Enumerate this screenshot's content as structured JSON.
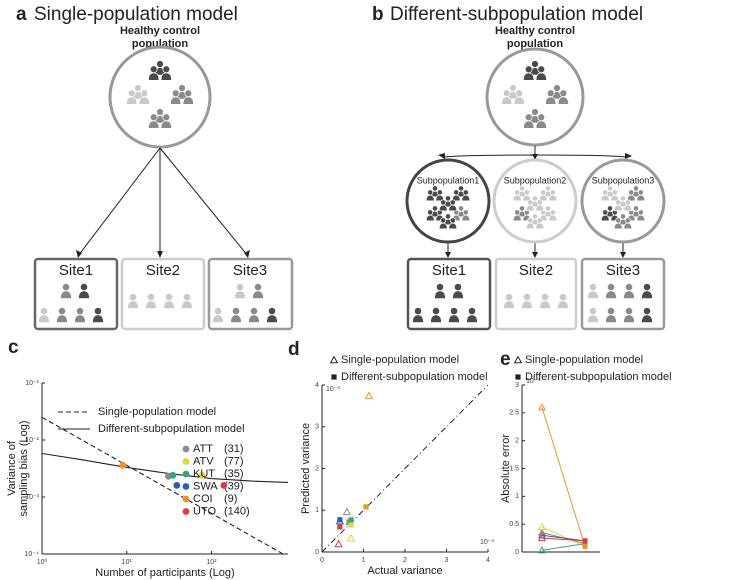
{
  "diagrams": {
    "a": {
      "label": "a",
      "title": "Single-population model",
      "population": [
        "Healthy control",
        "population"
      ],
      "sites": [
        "Site1",
        "Site2",
        "Site3"
      ]
    },
    "b": {
      "label": "b",
      "title": "Different-subpopulation model",
      "population": [
        "Healthy control",
        "population"
      ],
      "subpopulations": [
        "Subpopulation1",
        "Subpopulation2",
        "Subpopulation3"
      ],
      "sites": [
        "Site1",
        "Site2",
        "Site3"
      ]
    }
  },
  "chart_data": [
    {
      "type": "scatter",
      "label": "c",
      "xlabel": "Number of participants (Log)",
      "ylabel": [
        "Variance of",
        "sampling bias (Log)"
      ],
      "xscale": "log",
      "yscale": "log",
      "xlim": [
        1,
        800
      ],
      "ylim": [
        0.0001,
        0.1
      ],
      "xticks": [
        {
          "value": 1,
          "label": "10⁰"
        },
        {
          "value": 10,
          "label": "10¹"
        },
        {
          "value": 100,
          "label": "10²"
        }
      ],
      "yticks": [
        {
          "value": 0.0001,
          "label": "10⁻⁴"
        },
        {
          "value": 0.001,
          "label": "10⁻³"
        },
        {
          "value": 0.01,
          "label": "10⁻²"
        },
        {
          "value": 0.1,
          "label": "10⁻¹"
        }
      ],
      "lines": [
        {
          "name": "Single-population model",
          "style": "dashed",
          "color": "#222222",
          "x": [
            1,
            700
          ],
          "values": [
            0.025,
            0.0001
          ]
        },
        {
          "name": "Different-subpopulation model",
          "style": "solid",
          "color": "#222222",
          "x": [
            1,
            3,
            10,
            30,
            100,
            300,
            800
          ],
          "values": [
            0.0058,
            0.0045,
            0.0033,
            0.0026,
            0.0021,
            0.0019,
            0.0018
          ]
        }
      ],
      "series": [
        {
          "name": "ATT",
          "n_label": "(31)",
          "color": "#8c8c8c",
          "x": [
            31
          ],
          "values": [
            0.0023
          ]
        },
        {
          "name": "ATV",
          "n_label": "(77)",
          "color": "#e8d33a",
          "x": [
            77
          ],
          "values": [
            0.0024
          ]
        },
        {
          "name": "KUT",
          "n_label": "(35)",
          "color": "#3aa57a",
          "x": [
            35
          ],
          "values": [
            0.0024
          ]
        },
        {
          "name": "SWA",
          "n_label": "(39)",
          "color": "#2c5faa",
          "x": [
            39
          ],
          "values": [
            0.0016
          ]
        },
        {
          "name": "COI",
          "n_label": "(9)",
          "color": "#f0922a",
          "x": [
            9
          ],
          "values": [
            0.0036
          ]
        },
        {
          "name": "UTO",
          "n_label": "(140)",
          "color": "#e03a3a",
          "x": [
            140
          ],
          "values": [
            0.0016
          ]
        }
      ]
    },
    {
      "type": "scatter",
      "label": "d",
      "xlabel": "Actual variance",
      "ylabel": "Predicted variance",
      "scale_label": "10⁻³",
      "xlim": [
        0,
        4
      ],
      "ylim": [
        0,
        4
      ],
      "xticks": [
        0,
        1,
        2,
        3,
        4
      ],
      "yticks": [
        0,
        1,
        2,
        3,
        4
      ],
      "reference_line": "dashdot",
      "series": [
        {
          "name": "Single-population model",
          "marker": "triangle",
          "x": [
            0.6,
            0.7,
            0.67,
            0.43,
            1.13,
            0.4
          ],
          "values": [
            0.96,
            0.33,
            0.72,
            0.74,
            3.74,
            0.19
          ],
          "colors": [
            "#8c8c8c",
            "#e8d33a",
            "#3aa57a",
            "#2c5faa",
            "#f0922a",
            "#e03a3a"
          ]
        },
        {
          "name": "Different-subpopulation model",
          "marker": "square",
          "x": [
            0.65,
            0.7,
            0.7,
            0.43,
            1.06,
            0.43
          ],
          "values": [
            0.72,
            0.65,
            0.77,
            0.77,
            1.08,
            0.6
          ],
          "colors": [
            "#8c8c8c",
            "#e8d33a",
            "#3aa57a",
            "#2c5faa",
            "#f0922a",
            "#e03a3a"
          ]
        }
      ]
    },
    {
      "type": "line",
      "label": "e",
      "ylabel": "Absolute error",
      "scale_label": "10⁻³",
      "ylim": [
        0,
        3
      ],
      "yticks": [
        0,
        0.5,
        1,
        1.5,
        2,
        2.5,
        3
      ],
      "categories": [
        null,
        null
      ],
      "legend": [
        {
          "name": "Single-population model",
          "marker": "triangle"
        },
        {
          "name": "Different-subpopulation model",
          "marker": "square"
        }
      ],
      "series": [
        {
          "color": "#8c8c8c",
          "values": [
            0.35,
            0.15
          ]
        },
        {
          "color": "#e8d33a",
          "values": [
            0.45,
            0.1
          ]
        },
        {
          "color": "#3aa57a",
          "values": [
            0.03,
            0.15
          ]
        },
        {
          "color": "#2c5faa",
          "values": [
            0.3,
            0.2
          ]
        },
        {
          "color": "#f0922a",
          "values": [
            2.6,
            0.1
          ]
        },
        {
          "color": "#e03a3a",
          "values": [
            0.25,
            0.2
          ]
        }
      ]
    }
  ]
}
